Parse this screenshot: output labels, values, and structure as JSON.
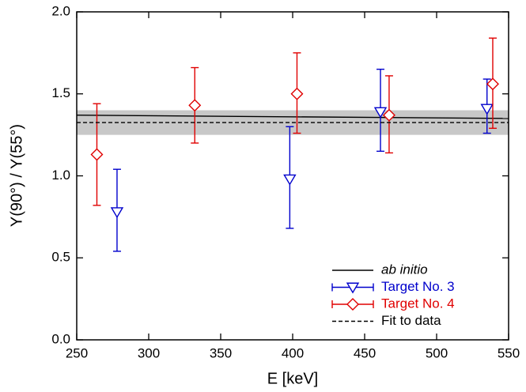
{
  "chart_data": {
    "type": "errorbar",
    "xlabel": "E [keV]",
    "ylabel": "Y(90°) / Y(55°)",
    "xlim": [
      250,
      550
    ],
    "xticks": [
      250,
      300,
      350,
      400,
      450,
      500,
      550
    ],
    "ylim": [
      0,
      2
    ],
    "yticks": [
      {
        "value": 0,
        "label": "0.0"
      },
      {
        "value": 0.5,
        "label": "0.5"
      },
      {
        "value": 1,
        "label": "1.0"
      },
      {
        "value": 1.5,
        "label": "1.5"
      },
      {
        "value": 2,
        "label": "2.0"
      }
    ],
    "legend": "lower right",
    "fit_band": {
      "lower": 1.25,
      "upper": 1.4,
      "color": "#c8c8c8"
    },
    "series": [
      {
        "name": "ab initio",
        "color": "#000000",
        "style": "solid",
        "x": [
          250,
          550
        ],
        "values": [
          1.37,
          1.35
        ]
      },
      {
        "name": "Target No. 3",
        "color": "#0000cc",
        "marker": "triangle-down",
        "x": [
          278,
          398,
          461,
          535
        ],
        "values": [
          0.78,
          0.98,
          1.39,
          1.41
        ],
        "yerr_minus": [
          0.24,
          0.3,
          0.24,
          0.15
        ],
        "yerr_plus": [
          0.26,
          0.32,
          0.26,
          0.18
        ]
      },
      {
        "name": "Target No. 4",
        "color": "#e00000",
        "marker": "diamond",
        "x": [
          264,
          332,
          403,
          467,
          539
        ],
        "values": [
          1.13,
          1.43,
          1.5,
          1.37,
          1.56
        ],
        "yerr_minus": [
          0.31,
          0.23,
          0.24,
          0.23,
          0.27
        ],
        "yerr_plus": [
          0.31,
          0.23,
          0.25,
          0.24,
          0.28
        ]
      },
      {
        "name": "Fit to data",
        "color": "#000000",
        "style": "dashed",
        "x": [
          250,
          550
        ],
        "values": [
          1.325,
          1.325
        ]
      }
    ]
  }
}
